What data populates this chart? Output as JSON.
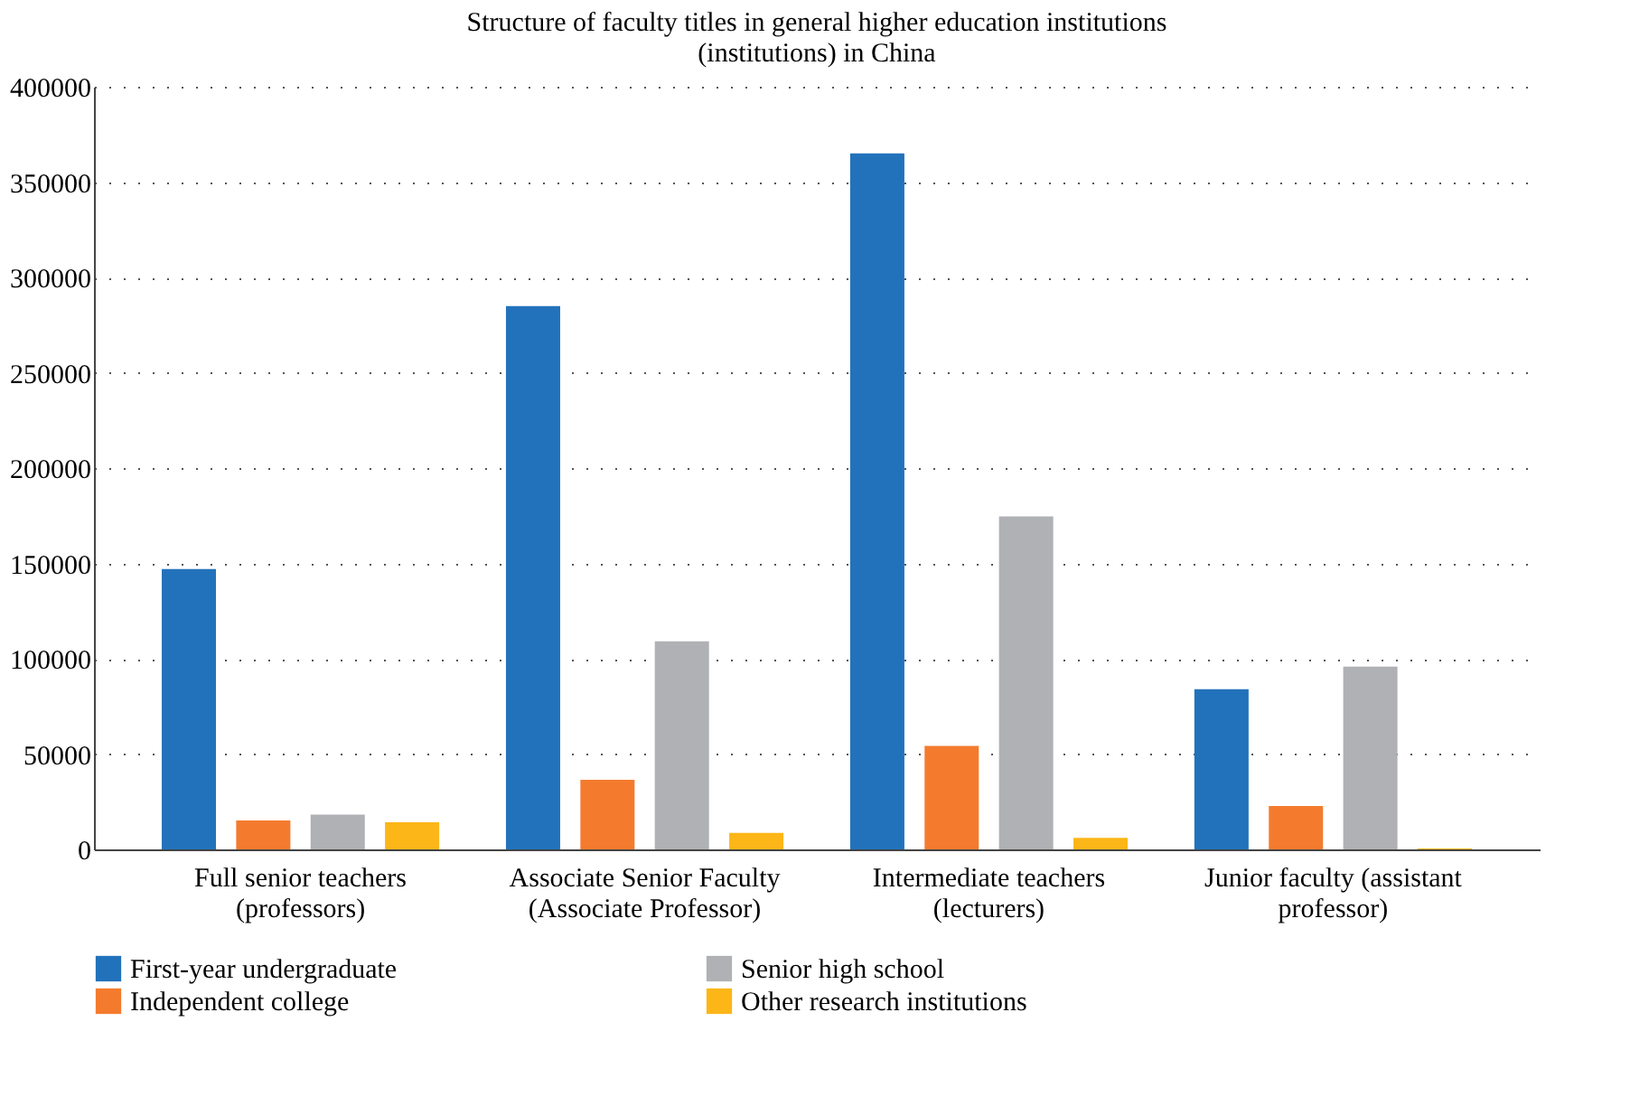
{
  "chart_data": {
    "type": "bar",
    "title": "Structure of faculty titles in general higher education institutions\n(institutions) in China",
    "categories": [
      "Full senior teachers\n(professors)",
      "Associate Senior Faculty\n(Associate Professor)",
      "Intermediate teachers\n(lecturers)",
      "Junior faculty (assistant\nprofessor)"
    ],
    "series": [
      {
        "name": "First-year undergraduate",
        "color": "#2272bb",
        "values": [
          147000,
          285000,
          365000,
          84000
        ]
      },
      {
        "name": "Independent college",
        "color": "#f47b2e",
        "values": [
          15200,
          36500,
          54300,
          22800
        ]
      },
      {
        "name": "Senior high school",
        "color": "#b0b1b4",
        "values": [
          18300,
          109100,
          174600,
          95900
        ]
      },
      {
        "name": "Other research institutions",
        "color": "#fcb618",
        "values": [
          14200,
          8600,
          6100,
          500
        ]
      }
    ],
    "ylim": [
      0,
      400000
    ],
    "yticks": [
      0,
      50000,
      100000,
      150000,
      200000,
      250000,
      300000,
      350000,
      400000
    ],
    "grid": "y",
    "legend": "bottom"
  }
}
